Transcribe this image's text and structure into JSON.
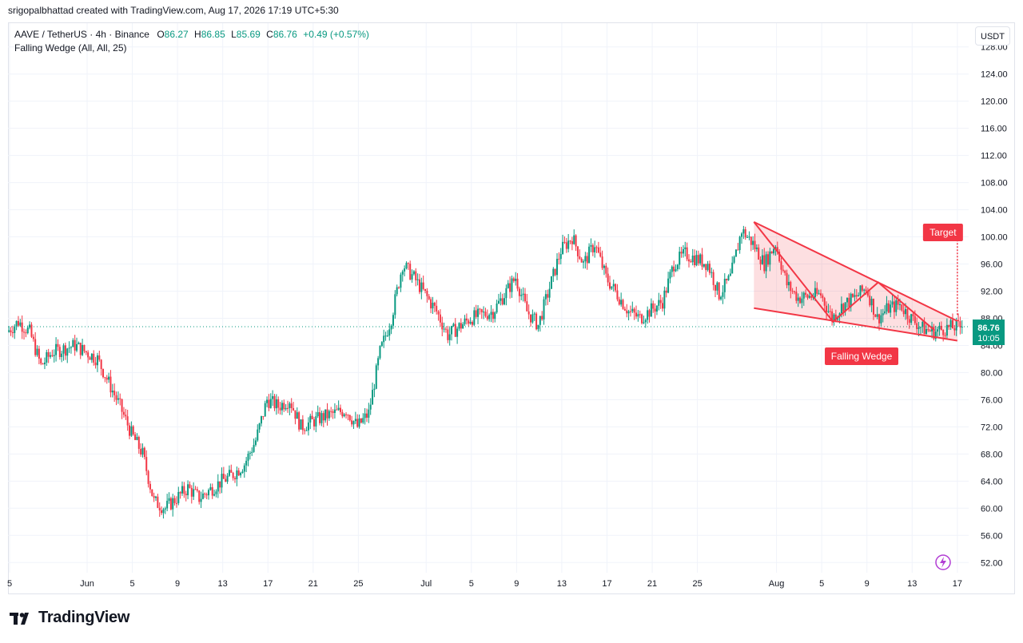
{
  "header": {
    "attribution": "srigopalbhattad created with TradingView.com, Aug 17, 2026 17:19 UTC+5:30"
  },
  "legend": {
    "symbol": "AAVE / TetherUS · 4h · Binance",
    "o_label": "O",
    "o_value": "86.27",
    "h_label": "H",
    "h_value": "86.85",
    "l_label": "L",
    "l_value": "85.69",
    "c_label": "C",
    "c_value": "86.76",
    "change": "+0.49 (+0.57%)",
    "indicator": "Falling Wedge (All, All, 25)"
  },
  "currency_button": "USDT",
  "logo": {
    "text": "TradingView"
  },
  "colors": {
    "up": "#089981",
    "down": "#f23645",
    "pattern": "#f23645",
    "grid": "#f0f3fa",
    "accent_badge": "#089981"
  },
  "chart_data": {
    "type": "candlestick",
    "timeframe": "4h",
    "y_axis": {
      "ticks": [
        "52.00",
        "56.00",
        "60.00",
        "64.00",
        "68.00",
        "72.00",
        "76.00",
        "80.00",
        "84.00",
        "88.00",
        "92.00",
        "96.00",
        "100.00",
        "104.00",
        "108.00",
        "112.00",
        "116.00",
        "120.00",
        "124.00",
        "128.00"
      ],
      "ylim": [
        50.5,
        131.5
      ]
    },
    "x_axis": {
      "ticks": [
        "5",
        "Jun",
        "5",
        "9",
        "13",
        "17",
        "21",
        "25",
        "Jul",
        "5",
        "9",
        "13",
        "17",
        "21",
        "25",
        "Aug",
        "5",
        "9",
        "13",
        "17"
      ],
      "xlim": [
        "2026-05-25",
        "2026-08-18"
      ]
    },
    "last_price": "86.76",
    "countdown": "10:05",
    "price_path": [
      [
        "2026-05-25",
        86
      ],
      [
        "2026-05-26",
        87.5
      ],
      [
        "2026-05-27",
        86
      ],
      [
        "2026-05-28",
        81
      ],
      [
        "2026-05-29",
        83
      ],
      [
        "2026-05-31",
        84
      ],
      [
        "2026-06-02",
        82
      ],
      [
        "2026-06-04",
        75
      ],
      [
        "2026-06-05",
        71
      ],
      [
        "2026-06-06",
        68
      ],
      [
        "2026-06-07",
        61
      ],
      [
        "2026-06-08",
        60
      ],
      [
        "2026-06-10",
        63
      ],
      [
        "2026-06-11",
        61.5
      ],
      [
        "2026-06-13",
        64
      ],
      [
        "2026-06-14",
        65
      ],
      [
        "2026-06-15",
        66.5
      ],
      [
        "2026-06-16",
        70
      ],
      [
        "2026-06-17",
        76
      ],
      [
        "2026-06-18",
        75
      ],
      [
        "2026-06-19",
        76
      ],
      [
        "2026-06-20",
        72
      ],
      [
        "2026-06-22",
        73.5
      ],
      [
        "2026-06-24",
        74.5
      ],
      [
        "2026-06-25",
        72
      ],
      [
        "2026-06-26",
        74
      ],
      [
        "2026-06-27",
        83
      ],
      [
        "2026-06-28",
        88
      ],
      [
        "2026-06-29",
        96
      ],
      [
        "2026-06-30",
        94
      ],
      [
        "2026-07-02",
        89
      ],
      [
        "2026-07-03",
        85.5
      ],
      [
        "2026-07-05",
        88
      ],
      [
        "2026-07-07",
        89
      ],
      [
        "2026-07-09",
        94
      ],
      [
        "2026-07-10",
        89
      ],
      [
        "2026-07-11",
        87
      ],
      [
        "2026-07-13",
        98
      ],
      [
        "2026-07-14",
        100
      ],
      [
        "2026-07-15",
        96
      ],
      [
        "2026-07-16",
        99
      ],
      [
        "2026-07-17",
        94
      ],
      [
        "2026-07-19",
        89
      ],
      [
        "2026-07-20",
        88
      ],
      [
        "2026-07-22",
        90.5
      ],
      [
        "2026-07-23",
        96
      ],
      [
        "2026-07-24",
        97.5
      ],
      [
        "2026-07-26",
        96
      ],
      [
        "2026-07-27",
        91.5
      ],
      [
        "2026-07-28",
        94
      ],
      [
        "2026-07-29",
        101
      ],
      [
        "2026-07-30",
        99
      ],
      [
        "2026-07-31",
        96
      ],
      [
        "2026-08-01",
        99
      ],
      [
        "2026-08-02",
        93
      ],
      [
        "2026-08-03",
        91
      ],
      [
        "2026-08-05",
        91.5
      ],
      [
        "2026-08-06",
        88
      ],
      [
        "2026-08-07",
        90
      ],
      [
        "2026-08-08",
        91
      ],
      [
        "2026-08-09",
        92.5
      ],
      [
        "2026-08-10",
        88
      ],
      [
        "2026-08-11",
        89.5
      ],
      [
        "2026-08-12",
        90
      ],
      [
        "2026-08-13",
        88
      ],
      [
        "2026-08-14",
        86.5
      ],
      [
        "2026-08-15",
        86
      ],
      [
        "2026-08-16",
        86.5
      ],
      [
        "2026-08-17",
        86.76
      ]
    ],
    "pattern": {
      "name": "Falling Wedge",
      "upper_line": [
        [
          "2026-07-30",
          102.2
        ],
        [
          "2026-08-17",
          87.6
        ]
      ],
      "lower_line": [
        [
          "2026-07-30",
          89.5
        ],
        [
          "2026-08-17",
          84.7
        ]
      ],
      "zigzag": [
        [
          "2026-07-30",
          102.2
        ],
        [
          "2026-08-06",
          87.5
        ],
        [
          "2026-08-10",
          93.3
        ],
        [
          "2026-08-15",
          86.2
        ]
      ],
      "target_label": "Target",
      "target_price": 100.6,
      "target_from": [
        "2026-08-17",
        88.5
      ]
    }
  }
}
